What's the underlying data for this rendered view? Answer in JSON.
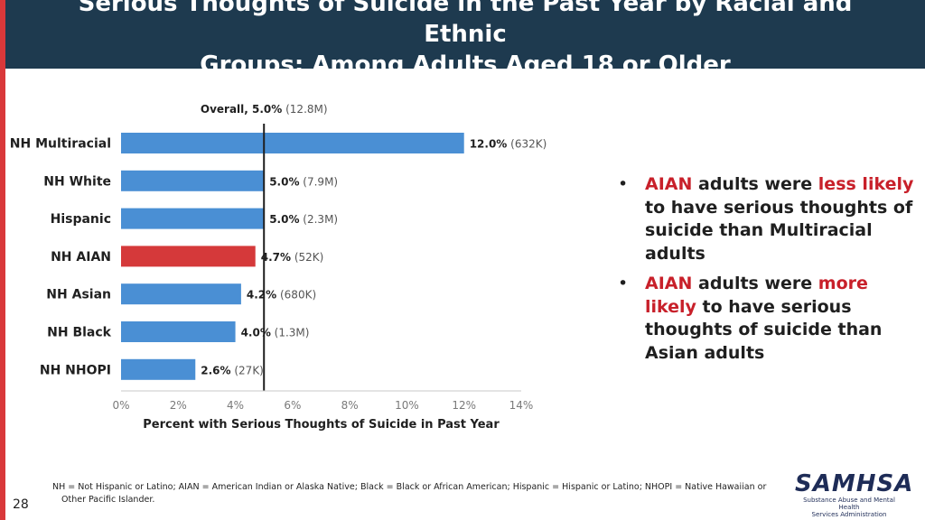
{
  "slide": {
    "title_line1": "Serious Thoughts of Suicide in the Past Year by Racial and Ethnic",
    "title_line2": "Groups: Among Adults Aged 18 or Older",
    "page_number": "28",
    "footnote_line1": "NH = Not Hispanic or Latino; AIAN = American Indian or Alaska Native; Black = Black or African American; Hispanic = Hispanic or Latino; NHOPI = Native Hawaiian or",
    "footnote_line2": "Other Pacific Islander.",
    "logo_text": "SAMHSA",
    "logo_subtext_1": "Substance Abuse and Mental Health",
    "logo_subtext_2": "Services Administration"
  },
  "bullets": [
    {
      "parts": [
        {
          "text": "AIAN",
          "red": true
        },
        {
          "text": " adults were ",
          "red": false
        },
        {
          "text": "less likely",
          "red": true
        },
        {
          "text": " to have serious thoughts of suicide than Multiracial adults",
          "red": false
        }
      ]
    },
    {
      "parts": [
        {
          "text": "AIAN",
          "red": true
        },
        {
          "text": " adults were ",
          "red": false
        },
        {
          "text": "more likely",
          "red": true
        },
        {
          "text": " to have serious thoughts of suicide than Asian adults",
          "red": false
        }
      ]
    }
  ],
  "chart_data": {
    "type": "bar",
    "orientation": "horizontal",
    "categories": [
      "NH Multiracial",
      "NH White",
      "Hispanic",
      "NH AIAN",
      "NH Asian",
      "NH Black",
      "NH NHOPI"
    ],
    "values": [
      12.0,
      5.0,
      5.0,
      4.7,
      4.2,
      4.0,
      2.6
    ],
    "value_labels": [
      "12.0%",
      "5.0%",
      "5.0%",
      "4.7%",
      "4.2%",
      "4.0%",
      "2.6%"
    ],
    "count_labels": [
      "(632K)",
      "(7.9M)",
      "(2.3M)",
      "(52K)",
      "(680K)",
      "(1.3M)",
      "(27K)"
    ],
    "highlight_category": "NH AIAN",
    "reference_line": {
      "value": 5.0,
      "label_bold": "Overall, 5.0%",
      "label_count": "(12.8M)"
    },
    "xlabel": "Percent with Serious Thoughts of Suicide in Past Year",
    "ylabel": "",
    "xlim": [
      0,
      14
    ],
    "xticks": [
      0,
      2,
      4,
      6,
      8,
      10,
      12,
      14
    ],
    "xtick_labels": [
      "0%",
      "2%",
      "4%",
      "6%",
      "8%",
      "10%",
      "12%",
      "14%"
    ],
    "colors": {
      "bar": "#4a8fd4",
      "highlight": "#d5393a",
      "reference": "#1f1f1f"
    },
    "grid": false
  }
}
